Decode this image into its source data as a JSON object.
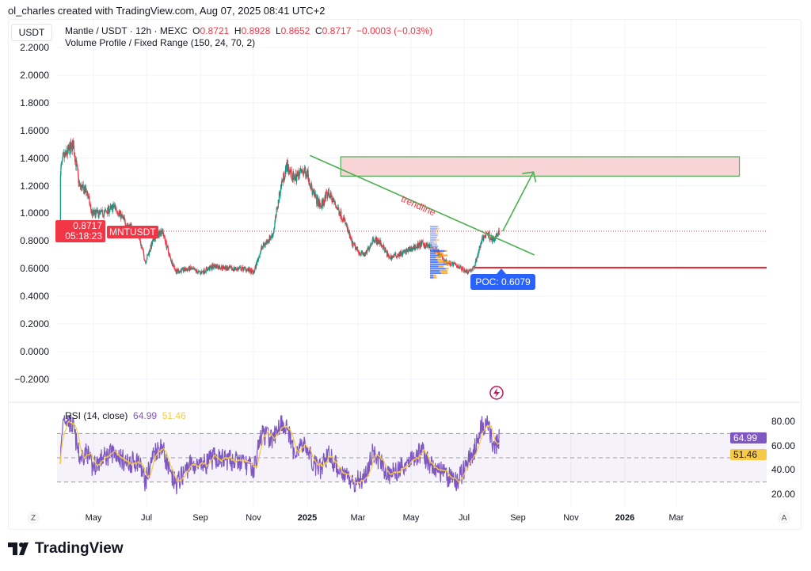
{
  "header": {
    "credit": "ol_charles created with TradingView.com, Aug 07, 2025 08:41 UTC+2",
    "currency": "USDT",
    "symbol_line": "Mantle / USDT · 12h · MEXC",
    "ohlc": {
      "o_label": "O",
      "o": "0.8721",
      "h_label": "H",
      "h": "0.8928",
      "l_label": "L",
      "l": "0.8652",
      "c_label": "C",
      "c": "0.8717",
      "change": "−0.0003 (−0.03%)"
    },
    "indicator": "Volume Profile / Fixed Range (150, 24, 70, 2)"
  },
  "price_tag": {
    "price": "0.8717",
    "countdown": "05:18:23",
    "symbol": "MNTUSDT"
  },
  "annotations": {
    "trendline_label": "trendline",
    "poc_label": "POC: 0.6079",
    "poc_value": 0.6079,
    "trendline": {
      "from": [
        "2025-01-04",
        1.42
      ],
      "to": [
        "2025-09-16",
        0.7
      ]
    },
    "target_zone": {
      "from": "2025-02-08",
      "to": "2026-05-07",
      "low": 1.27,
      "high": 1.41
    },
    "arrow": {
      "from": [
        "2025-08-11",
        0.87
      ],
      "to": [
        "2025-09-15",
        1.3
      ]
    }
  },
  "rsi_legend": {
    "label": "RSI (14, close)",
    "rsi": "64.99",
    "ma": "51.46"
  },
  "footer": {
    "z": "Z",
    "a": "A",
    "logo": "TradingView"
  },
  "colors": {
    "up": "#089981",
    "down": "#f23645",
    "rsi": "#7e57c2",
    "rsi_ma": "#f7c948",
    "accent": "#2962ff",
    "annotation": "#4caf50",
    "zone": "#f8d4d6"
  },
  "chart_data": [
    {
      "type": "candlestick",
      "title": "Mantle / USDT · 12h · MEXC",
      "y_ticks": [
        "2.2000",
        "2.0000",
        "1.8000",
        "1.6000",
        "1.4000",
        "1.2000",
        "1.0000",
        "0.8000",
        "0.6000",
        "0.4000",
        "0.2000",
        "0.0000",
        "−0.2000"
      ],
      "ylim": [
        -0.25,
        2.25
      ],
      "x_ticks": [
        "May",
        "Jul",
        "Sep",
        "Nov",
        "2025",
        "Mar",
        "May",
        "Jul",
        "Sep",
        "Nov",
        "2026",
        "Mar"
      ],
      "grid": true,
      "last_price": 0.8717,
      "dates": [
        "2024-03-26",
        "2024-03-30",
        "2024-04-10",
        "2024-04-17",
        "2024-04-26",
        "2024-05-01",
        "2024-05-14",
        "2024-05-27",
        "2024-06-10",
        "2024-06-23",
        "2024-07-01",
        "2024-07-11",
        "2024-07-20",
        "2024-07-29",
        "2024-08-05",
        "2024-08-21",
        "2024-09-01",
        "2024-09-17",
        "2024-10-05",
        "2024-10-23",
        "2024-11-01",
        "2024-11-10",
        "2024-11-23",
        "2024-12-02",
        "2024-12-09",
        "2024-12-16",
        "2024-12-25",
        "2025-01-01",
        "2025-01-07",
        "2025-01-16",
        "2025-01-25",
        "2025-02-03",
        "2025-02-12",
        "2025-02-21",
        "2025-03-01",
        "2025-03-08",
        "2025-03-17",
        "2025-03-26",
        "2025-04-04",
        "2025-04-13",
        "2025-04-22",
        "2025-05-01",
        "2025-05-11",
        "2025-05-20",
        "2025-05-29",
        "2025-06-07",
        "2025-06-21",
        "2025-07-01",
        "2025-07-09",
        "2025-07-18",
        "2025-07-24",
        "2025-08-01",
        "2025-08-07"
      ],
      "close": [
        1.3,
        1.4,
        1.5,
        1.2,
        1.15,
        1.0,
        1.0,
        1.05,
        0.92,
        0.85,
        0.65,
        0.82,
        0.88,
        0.68,
        0.58,
        0.6,
        0.57,
        0.62,
        0.6,
        0.6,
        0.57,
        0.75,
        0.85,
        1.2,
        1.35,
        1.25,
        1.3,
        1.3,
        1.15,
        1.05,
        1.15,
        1.05,
        0.95,
        0.78,
        0.72,
        0.7,
        0.82,
        0.78,
        0.68,
        0.7,
        0.72,
        0.75,
        0.78,
        0.76,
        0.72,
        0.65,
        0.62,
        0.58,
        0.6,
        0.8,
        0.86,
        0.8,
        0.87
      ]
    },
    {
      "type": "line",
      "title": "RSI (14, close)",
      "y_ticks": [
        "80.00",
        "60.00",
        "40.00",
        "20.00"
      ],
      "bands": [
        70,
        30
      ],
      "mid": 50,
      "last_rsi": 64.99,
      "last_ma": 51.46,
      "rsi": [
        45,
        85,
        75,
        50,
        55,
        42,
        50,
        55,
        45,
        48,
        30,
        55,
        60,
        35,
        28,
        45,
        42,
        50,
        48,
        45,
        40,
        70,
        65,
        80,
        75,
        55,
        60,
        58,
        45,
        40,
        55,
        42,
        38,
        30,
        32,
        35,
        55,
        45,
        35,
        40,
        45,
        50,
        55,
        45,
        40,
        35,
        30,
        45,
        55,
        75,
        80,
        55,
        65
      ]
    }
  ]
}
